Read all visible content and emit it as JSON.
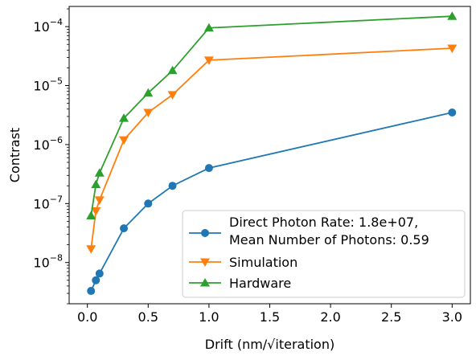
{
  "chart_data": {
    "type": "line",
    "xlabel": "Drift (nm/√iteration)",
    "ylabel": "Contrast",
    "x_ticks": [
      "0.0",
      "0.5",
      "1.0",
      "1.5",
      "2.0",
      "2.5",
      "3.0"
    ],
    "y_tick_exponents": [
      "−8",
      "−7",
      "−6",
      "−5",
      "−4"
    ],
    "xlim": [
      -0.15,
      3.15
    ],
    "ylim": [
      2e-09,
      0.00022
    ],
    "yscale": "log",
    "grid": false,
    "legend_position": "lower-right",
    "series": [
      {
        "name_lines": [
          "Direct Photon Rate: 1.8e+07,",
          "Mean Number of Photons: 0.59"
        ],
        "color": "#1f77b4",
        "marker": "circle",
        "x": [
          0.03,
          0.07,
          0.1,
          0.3,
          0.5,
          0.7,
          1.0,
          3.0
        ],
        "y": [
          3.3e-09,
          5e-09,
          6.5e-09,
          3.8e-08,
          1e-07,
          2e-07,
          4e-07,
          3.5e-06
        ]
      },
      {
        "name_lines": [
          "Simulation"
        ],
        "color": "#ff7f0e",
        "marker": "triangle-down",
        "x": [
          0.03,
          0.07,
          0.1,
          0.3,
          0.5,
          0.7,
          1.0,
          3.0
        ],
        "y": [
          1.7e-08,
          7.5e-08,
          1.15e-07,
          1.2e-06,
          3.5e-06,
          7e-06,
          2.7e-05,
          4.3e-05
        ]
      },
      {
        "name_lines": [
          "Hardware"
        ],
        "color": "#2ca02c",
        "marker": "triangle-up",
        "x": [
          0.03,
          0.07,
          0.1,
          0.3,
          0.5,
          0.7,
          1.0,
          3.0
        ],
        "y": [
          6.2e-08,
          2.1e-07,
          3.3e-07,
          2.8e-06,
          7.5e-06,
          1.8e-05,
          9.5e-05,
          0.00015
        ]
      }
    ]
  }
}
